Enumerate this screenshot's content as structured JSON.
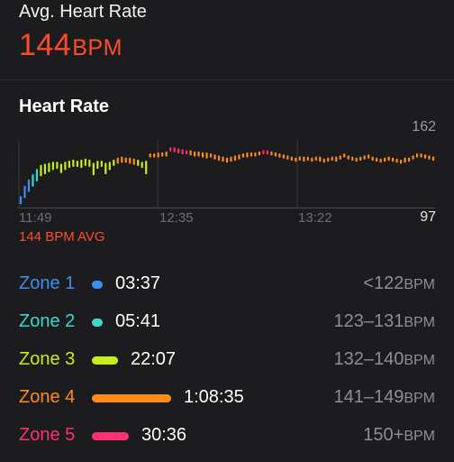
{
  "header": {
    "avg_label": "Avg. Heart Rate",
    "avg_value": "144",
    "avg_unit": "BPM"
  },
  "heart_rate": {
    "title": "Heart Rate",
    "y_max_label": "162",
    "y_min_label": "97",
    "x_labels": [
      "11:49",
      "12:35",
      "13:22"
    ],
    "avg_text": "144 BPM AVG"
  },
  "zones": [
    {
      "name": "Zone 1",
      "time": "03:37",
      "range": "<122",
      "unit": "BPM",
      "color": "#3d8ef0",
      "fraction": 0.035
    },
    {
      "name": "Zone 2",
      "time": "05:41",
      "range": "123–131",
      "unit": "BPM",
      "color": "#3fd6d0",
      "fraction": 0.05
    },
    {
      "name": "Zone 3",
      "time": "22:07",
      "range": "132–140",
      "unit": "BPM",
      "color": "#c6ee1a",
      "fraction": 0.2
    },
    {
      "name": "Zone 4",
      "time": "1:08:35",
      "range": "141–149",
      "unit": "BPM",
      "color": "#ff8c1a",
      "fraction": 0.6
    },
    {
      "name": "Zone 5",
      "time": "30:36",
      "range": "150+",
      "unit": "BPM",
      "color": "#ff2f74",
      "fraction": 0.28
    }
  ],
  "chart_data": {
    "type": "bar",
    "title": "Heart Rate",
    "ylim": [
      97,
      162
    ],
    "x_tick_labels": [
      "11:49",
      "12:35",
      "13:22"
    ],
    "series": [
      {
        "values": [
          [
            100,
            108
          ],
          [
            106,
            118
          ],
          [
            112,
            124
          ],
          [
            117,
            129
          ],
          [
            122,
            134
          ],
          [
            127,
            138
          ],
          [
            129,
            139
          ],
          [
            131,
            140
          ],
          [
            133,
            141
          ],
          [
            134,
            141
          ],
          [
            130,
            139
          ],
          [
            133,
            141
          ],
          [
            135,
            142
          ],
          [
            136,
            143
          ],
          [
            136,
            142
          ],
          [
            135,
            143
          ],
          [
            137,
            144
          ],
          [
            136,
            143
          ],
          [
            128,
            140
          ],
          [
            134,
            142
          ],
          [
            136,
            142
          ],
          [
            129,
            140
          ],
          [
            133,
            141
          ],
          [
            137,
            143
          ],
          [
            139,
            145
          ],
          [
            140,
            146
          ],
          [
            140,
            145
          ],
          [
            139,
            145
          ],
          [
            138,
            144
          ],
          [
            137,
            143
          ],
          [
            135,
            141
          ],
          [
            129,
            142
          ],
          [
            145,
            149
          ],
          [
            145,
            149
          ],
          [
            145,
            150
          ],
          [
            146,
            150
          ],
          [
            146,
            151
          ],
          [
            151,
            155
          ],
          [
            150,
            155
          ],
          [
            149,
            154
          ],
          [
            148,
            153
          ],
          [
            148,
            152
          ],
          [
            147,
            152
          ],
          [
            146,
            151
          ],
          [
            146,
            151
          ],
          [
            145,
            150
          ],
          [
            144,
            150
          ],
          [
            145,
            149
          ],
          [
            143,
            148
          ],
          [
            142,
            147
          ],
          [
            141,
            146
          ],
          [
            140,
            145
          ],
          [
            141,
            146
          ],
          [
            142,
            147
          ],
          [
            143,
            148
          ],
          [
            145,
            149
          ],
          [
            145,
            150
          ],
          [
            146,
            150
          ],
          [
            146,
            150
          ],
          [
            147,
            151
          ],
          [
            148,
            152
          ],
          [
            148,
            152
          ],
          [
            147,
            151
          ],
          [
            146,
            150
          ],
          [
            145,
            149
          ],
          [
            144,
            148
          ],
          [
            143,
            147
          ],
          [
            142,
            146
          ],
          [
            141,
            145
          ],
          [
            142,
            146
          ],
          [
            141,
            146
          ],
          [
            142,
            146
          ],
          [
            141,
            145
          ],
          [
            142,
            146
          ],
          [
            141,
            146
          ],
          [
            140,
            144
          ],
          [
            141,
            145
          ],
          [
            142,
            146
          ],
          [
            141,
            146
          ],
          [
            143,
            147
          ],
          [
            145,
            149
          ],
          [
            143,
            147
          ],
          [
            142,
            146
          ],
          [
            141,
            145
          ],
          [
            142,
            146
          ],
          [
            143,
            147
          ],
          [
            144,
            148
          ],
          [
            142,
            146
          ],
          [
            141,
            145
          ],
          [
            140,
            144
          ],
          [
            141,
            145
          ],
          [
            142,
            146
          ],
          [
            141,
            145
          ],
          [
            140,
            144
          ],
          [
            139,
            143
          ],
          [
            140,
            145
          ],
          [
            141,
            145
          ],
          [
            143,
            147
          ],
          [
            145,
            149
          ],
          [
            145,
            149
          ],
          [
            144,
            148
          ],
          [
            143,
            147
          ],
          [
            142,
            146
          ]
        ]
      }
    ],
    "zone_colors": [
      "#3d8ef0",
      "#3fd6d0",
      "#c6ee1a",
      "#ff8c1a",
      "#ff2f74"
    ],
    "grid": true
  }
}
